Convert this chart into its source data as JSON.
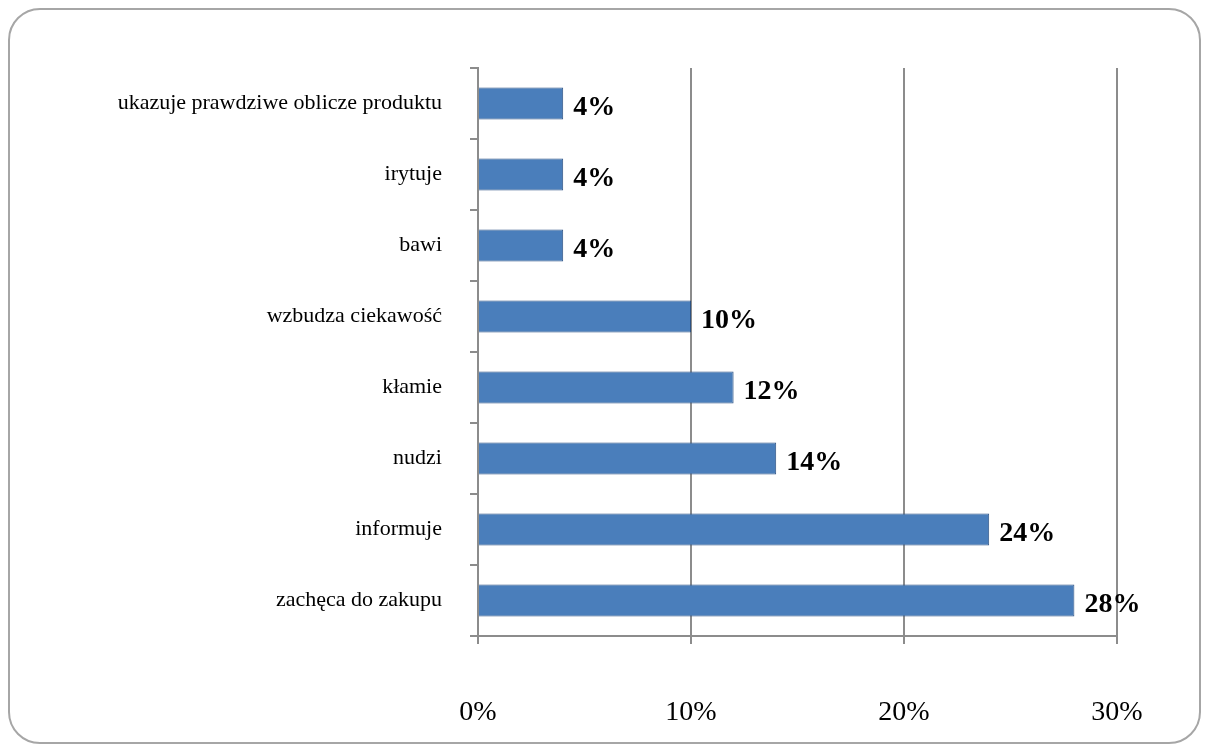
{
  "chart_data": {
    "type": "bar",
    "orientation": "horizontal",
    "categories": [
      "ukazuje prawdziwe oblicze produktu",
      "irytuje",
      "bawi",
      "wzbudza ciekawość",
      "kłamie",
      "nudzi",
      "informuje",
      "zachęca do zakupu"
    ],
    "values": [
      4,
      4,
      4,
      10,
      12,
      14,
      24,
      28
    ],
    "color": "#4a7ebb",
    "value_labels": [
      "4%",
      "4%",
      "4%",
      "10%",
      "12%",
      "14%",
      "24%",
      "28%"
    ],
    "xlim": [
      0,
      30
    ],
    "xticks": [
      {
        "value": 0,
        "label": "0%"
      },
      {
        "value": 10,
        "label": "10%"
      },
      {
        "value": 20,
        "label": "20%"
      },
      {
        "value": 30,
        "label": "30%"
      }
    ],
    "grid": "x"
  }
}
